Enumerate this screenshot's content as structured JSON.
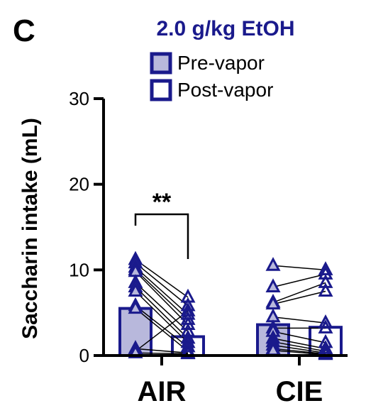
{
  "panel_label": "C",
  "chart_data": {
    "type": "bar",
    "title": "2.0 g/kg EtOH",
    "ylabel": "Saccharin intake (mL)",
    "xlabel": "",
    "ylim": [
      0,
      30
    ],
    "yticks": [
      0,
      10,
      20,
      30
    ],
    "categories": [
      "AIR",
      "CIE"
    ],
    "legend": [
      {
        "name": "Pre-vapor",
        "style": "filled"
      },
      {
        "name": "Post-vapor",
        "style": "open"
      }
    ],
    "colors": {
      "primary": "#1a1a8c",
      "fill": "#b8b8dc",
      "axis": "#000000"
    },
    "series": [
      {
        "name": "Pre-vapor",
        "values": [
          5.5,
          3.6
        ]
      },
      {
        "name": "Post-vapor",
        "values": [
          2.2,
          3.3
        ]
      }
    ],
    "paired_points": [
      {
        "category": "AIR",
        "pairs": [
          [
            11.2,
            6.8
          ],
          [
            10.8,
            5.8
          ],
          [
            10.3,
            4.8
          ],
          [
            10.0,
            4.2
          ],
          [
            9.8,
            3.6
          ],
          [
            8.5,
            2.8
          ],
          [
            8.0,
            2.0
          ],
          [
            7.5,
            1.5
          ],
          [
            5.8,
            1.0
          ],
          [
            5.5,
            0.5
          ],
          [
            0.8,
            0.3
          ],
          [
            0.5,
            5.2
          ],
          [
            0.3,
            0.2
          ]
        ]
      },
      {
        "category": "CIE",
        "pairs": [
          [
            10.5,
            10.0
          ],
          [
            8.0,
            9.5
          ],
          [
            6.2,
            8.5
          ],
          [
            6.0,
            7.5
          ],
          [
            4.5,
            3.8
          ],
          [
            3.2,
            3.2
          ],
          [
            2.8,
            1.5
          ],
          [
            2.0,
            0.8
          ],
          [
            1.6,
            0.5
          ],
          [
            1.2,
            0.3
          ],
          [
            0.8,
            0.2
          ],
          [
            0.6,
            0.1
          ]
        ]
      }
    ],
    "annotations": [
      {
        "text": "**",
        "between": [
          "AIR Pre-vapor",
          "AIR Post-vapor"
        ]
      }
    ],
    "grid": false,
    "legend_position": "top-center"
  }
}
